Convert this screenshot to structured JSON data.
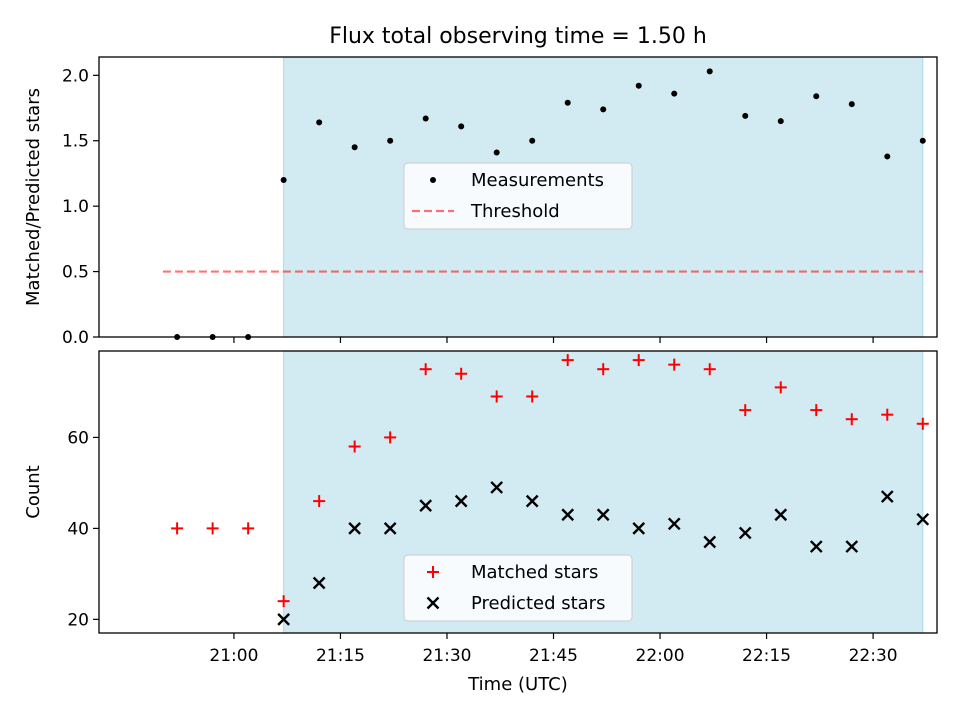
{
  "title": "Flux total observing time = 1.50 h",
  "xlabel": "Time (UTC)",
  "colors": {
    "shade": "#add8e6",
    "measurement": "#000000",
    "threshold": "#ff0000",
    "matched": "#ff0000",
    "predicted": "#000000"
  },
  "chart_data": [
    {
      "type": "scatter",
      "panel": "top",
      "ylabel": "Matched/Predicted stars",
      "ylim": [
        0.0,
        2.14
      ],
      "yticks": [
        0.0,
        0.5,
        1.0,
        1.5,
        2.0
      ],
      "ytick_labels": [
        "0.0",
        "0.5",
        "1.0",
        "1.5",
        "2.0"
      ],
      "xlim": [
        "20:41",
        "22:39"
      ],
      "shaded_span": [
        "21:07",
        "22:37"
      ],
      "legend_placement": "center",
      "legend": [
        "Measurements",
        "Threshold"
      ],
      "threshold": {
        "name": "Threshold",
        "value": 0.5,
        "x": [
          "20:50",
          "22:37"
        ]
      },
      "series": [
        {
          "name": "Measurements",
          "x": [
            "20:52",
            "20:57",
            "21:02",
            "21:07",
            "21:12",
            "21:17",
            "21:22",
            "21:27",
            "21:32",
            "21:37",
            "21:42",
            "21:47",
            "21:52",
            "21:57",
            "22:02",
            "22:07",
            "22:12",
            "22:17",
            "22:22",
            "22:27",
            "22:32",
            "22:37"
          ],
          "values": [
            0.0,
            0.0,
            0.0,
            1.2,
            1.64,
            1.45,
            1.5,
            1.67,
            1.61,
            1.41,
            1.5,
            1.79,
            1.74,
            1.92,
            1.86,
            2.03,
            1.69,
            1.65,
            1.84,
            1.78,
            1.38,
            1.5
          ]
        }
      ]
    },
    {
      "type": "scatter",
      "panel": "bottom",
      "ylabel": "Count",
      "ylim": [
        17,
        79
      ],
      "yticks": [
        20,
        40,
        60
      ],
      "ytick_labels": [
        "20",
        "40",
        "60"
      ],
      "xlim": [
        "20:41",
        "22:39"
      ],
      "xticks": [
        "21:00",
        "21:15",
        "21:30",
        "21:45",
        "22:00",
        "22:15",
        "22:30"
      ],
      "shaded_span": [
        "21:07",
        "22:37"
      ],
      "legend_placement": "lower center",
      "legend": [
        "Matched stars",
        "Predicted stars"
      ],
      "series": [
        {
          "name": "Matched stars",
          "x": [
            "20:52",
            "20:57",
            "21:02",
            "21:07",
            "21:12",
            "21:17",
            "21:22",
            "21:27",
            "21:32",
            "21:37",
            "21:42",
            "21:47",
            "21:52",
            "21:57",
            "22:02",
            "22:07",
            "22:12",
            "22:17",
            "22:22",
            "22:27",
            "22:32",
            "22:37"
          ],
          "values": [
            40,
            40,
            40,
            24,
            46,
            58,
            60,
            75,
            74,
            69,
            69,
            77,
            75,
            77,
            76,
            75,
            66,
            71,
            66,
            64,
            65,
            63
          ]
        },
        {
          "name": "Predicted stars",
          "x": [
            "21:07",
            "21:12",
            "21:17",
            "21:22",
            "21:27",
            "21:32",
            "21:37",
            "21:42",
            "21:47",
            "21:52",
            "21:57",
            "22:02",
            "22:07",
            "22:12",
            "22:17",
            "22:22",
            "22:27",
            "22:32",
            "22:37"
          ],
          "values": [
            20,
            28,
            40,
            40,
            45,
            46,
            49,
            46,
            43,
            43,
            40,
            41,
            37,
            39,
            43,
            36,
            36,
            47,
            42
          ]
        }
      ]
    }
  ]
}
